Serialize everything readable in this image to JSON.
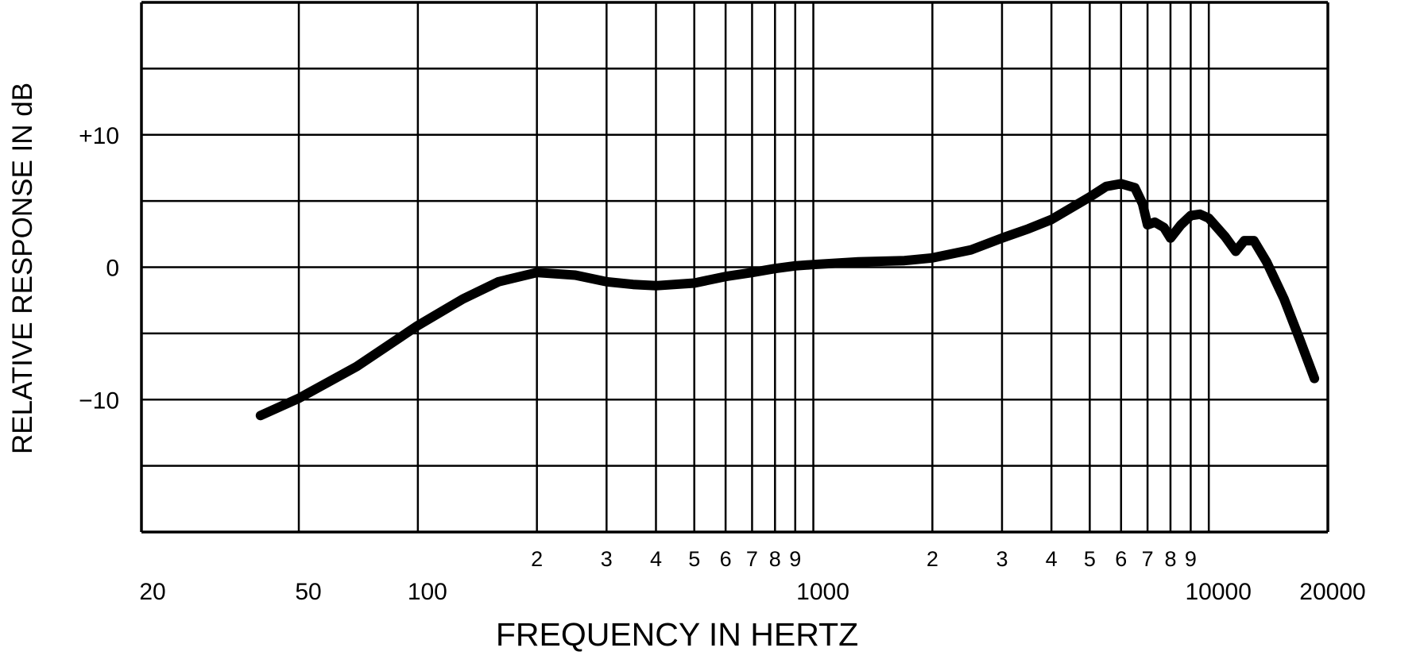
{
  "chart_data": {
    "type": "line",
    "title": "",
    "xlabel": "FREQUENCY IN HERTZ",
    "ylabel": "RELATIVE RESPONSE IN dB",
    "x_scale": "log",
    "xlim": [
      20,
      20000
    ],
    "ylim": [
      -20,
      20
    ],
    "grid": true,
    "legend": "none",
    "line_color": "#000000",
    "x_major_tick_labels": [
      {
        "value": 20,
        "label": "20"
      },
      {
        "value": 50,
        "label": "50"
      },
      {
        "value": 100,
        "label": "100"
      },
      {
        "value": 1000,
        "label": "1000"
      },
      {
        "value": 10000,
        "label": "10000"
      },
      {
        "value": 20000,
        "label": "20000"
      }
    ],
    "x_minor_tick_labels": [
      {
        "value": 200,
        "label": "2"
      },
      {
        "value": 300,
        "label": "3"
      },
      {
        "value": 400,
        "label": "4"
      },
      {
        "value": 500,
        "label": "5"
      },
      {
        "value": 600,
        "label": "6"
      },
      {
        "value": 700,
        "label": "7"
      },
      {
        "value": 800,
        "label": "8"
      },
      {
        "value": 900,
        "label": "9"
      },
      {
        "value": 2000,
        "label": "2"
      },
      {
        "value": 3000,
        "label": "3"
      },
      {
        "value": 4000,
        "label": "4"
      },
      {
        "value": 5000,
        "label": "5"
      },
      {
        "value": 6000,
        "label": "6"
      },
      {
        "value": 7000,
        "label": "7"
      },
      {
        "value": 8000,
        "label": "8"
      },
      {
        "value": 9000,
        "label": "9"
      }
    ],
    "x_gridlines": [
      20,
      50,
      100,
      200,
      300,
      400,
      500,
      600,
      700,
      800,
      900,
      1000,
      2000,
      3000,
      4000,
      5000,
      6000,
      7000,
      8000,
      9000,
      10000,
      20000
    ],
    "y_gridlines": [
      -20,
      -15,
      -10,
      -5,
      0,
      5,
      10,
      15,
      20
    ],
    "y_tick_labels": [
      {
        "value": 10,
        "label": "+10"
      },
      {
        "value": 0,
        "label": "0"
      },
      {
        "value": -10,
        "label": "−10"
      }
    ],
    "series": [
      {
        "points": [
          {
            "x": 40,
            "y": -11.2
          },
          {
            "x": 50,
            "y": -9.9
          },
          {
            "x": 70,
            "y": -7.5
          },
          {
            "x": 100,
            "y": -4.4
          },
          {
            "x": 130,
            "y": -2.4
          },
          {
            "x": 160,
            "y": -1.1
          },
          {
            "x": 200,
            "y": -0.4
          },
          {
            "x": 250,
            "y": -0.6
          },
          {
            "x": 300,
            "y": -1.1
          },
          {
            "x": 350,
            "y": -1.3
          },
          {
            "x": 400,
            "y": -1.4
          },
          {
            "x": 500,
            "y": -1.2
          },
          {
            "x": 600,
            "y": -0.7
          },
          {
            "x": 700,
            "y": -0.4
          },
          {
            "x": 800,
            "y": -0.1
          },
          {
            "x": 900,
            "y": 0.1
          },
          {
            "x": 1000,
            "y": 0.2
          },
          {
            "x": 1300,
            "y": 0.4
          },
          {
            "x": 1700,
            "y": 0.5
          },
          {
            "x": 2000,
            "y": 0.7
          },
          {
            "x": 2500,
            "y": 1.3
          },
          {
            "x": 3000,
            "y": 2.2
          },
          {
            "x": 3500,
            "y": 2.9
          },
          {
            "x": 4000,
            "y": 3.6
          },
          {
            "x": 4500,
            "y": 4.5
          },
          {
            "x": 5000,
            "y": 5.3
          },
          {
            "x": 5500,
            "y": 6.1
          },
          {
            "x": 6000,
            "y": 6.3
          },
          {
            "x": 6500,
            "y": 6.0
          },
          {
            "x": 6800,
            "y": 4.8
          },
          {
            "x": 7000,
            "y": 3.2
          },
          {
            "x": 7300,
            "y": 3.4
          },
          {
            "x": 7700,
            "y": 3.0
          },
          {
            "x": 8000,
            "y": 2.2
          },
          {
            "x": 8500,
            "y": 3.2
          },
          {
            "x": 9000,
            "y": 3.9
          },
          {
            "x": 9500,
            "y": 4.0
          },
          {
            "x": 10000,
            "y": 3.7
          },
          {
            "x": 11000,
            "y": 2.3
          },
          {
            "x": 11700,
            "y": 1.2
          },
          {
            "x": 12300,
            "y": 2.0
          },
          {
            "x": 13000,
            "y": 2.0
          },
          {
            "x": 14000,
            "y": 0.4
          },
          {
            "x": 15500,
            "y": -2.4
          },
          {
            "x": 17000,
            "y": -5.5
          },
          {
            "x": 18500,
            "y": -8.4
          }
        ]
      }
    ]
  }
}
